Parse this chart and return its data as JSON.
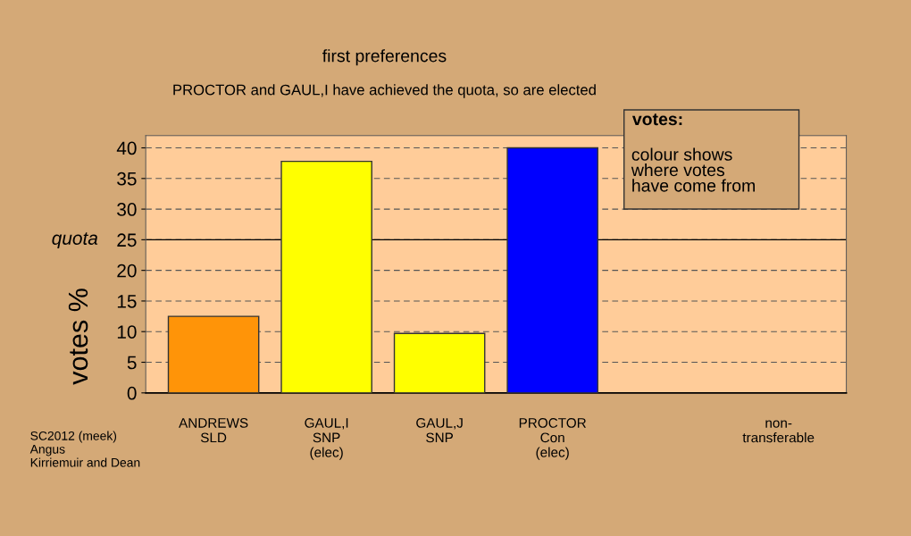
{
  "chart_data": {
    "type": "bar",
    "title": "first preferences",
    "subtitle": "PROCTOR and GAUL,I have achieved the quota, so are elected",
    "ylabel": "votes %",
    "categories": [
      "ANDREWS\nSLD",
      "GAUL,I\nSNP\n(elec)",
      "GAUL,J\nSNP",
      "PROCTOR\nCon\n(elec)",
      null,
      "non-\ntransferable"
    ],
    "values": [
      12.5,
      37.8,
      9.7,
      40.0,
      null,
      null
    ],
    "colors": [
      "#ff9408",
      "#ffff00",
      "#ffff00",
      "#0000ff",
      null,
      null
    ],
    "ylim": [
      0,
      42
    ],
    "yticks": [
      0,
      5,
      10,
      15,
      20,
      25,
      30,
      35,
      40
    ],
    "ref_lines": [
      {
        "axis": "y",
        "value": 25,
        "label": "quota"
      }
    ],
    "grid": "y",
    "annotations": [
      "votes:",
      "colour shows\nwhere votes\nhave come from",
      "SC2012 (meek)\nAngus\nKirriemuir and Dean"
    ]
  }
}
